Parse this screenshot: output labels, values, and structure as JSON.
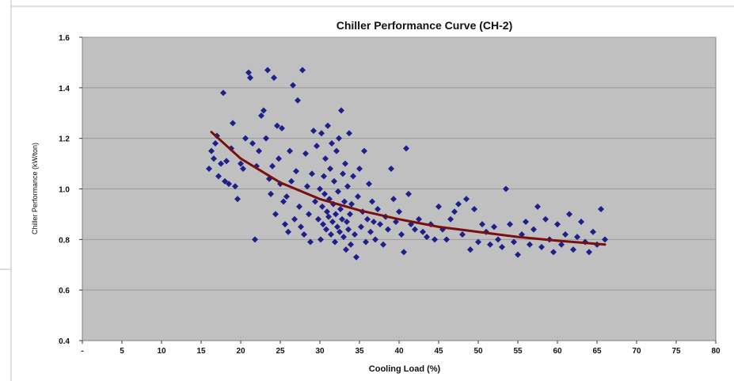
{
  "chart_data": {
    "type": "scatter",
    "title": "Chiller Performance Curve (CH-2)",
    "xlabel": "Cooling Load (%)",
    "ylabel": "Chiller Performance (kW/ton)",
    "xlim": [
      0,
      80
    ],
    "ylim": [
      0.4,
      1.6
    ],
    "x_ticks": [
      "-",
      "5",
      "10",
      "15",
      "20",
      "25",
      "30",
      "35",
      "40",
      "45",
      "50",
      "55",
      "60",
      "65",
      "70",
      "75",
      "80"
    ],
    "y_ticks": [
      "0.4",
      "0.6",
      "0.8",
      "1.0",
      "1.2",
      "1.4",
      "1.6"
    ],
    "grid": true,
    "legend": "none",
    "colors": {
      "plot_background": "#c0c0c0",
      "points": "#1f1f8a",
      "trendline": "#7a0f0f",
      "gridline": "#9a9a9a"
    },
    "series": [
      {
        "type": "scatter",
        "marker": "diamond",
        "points": [
          [
            16.0,
            1.08
          ],
          [
            16.3,
            1.15
          ],
          [
            16.6,
            1.12
          ],
          [
            16.8,
            1.18
          ],
          [
            17.0,
            1.21
          ],
          [
            17.2,
            1.05
          ],
          [
            17.5,
            1.1
          ],
          [
            17.8,
            1.38
          ],
          [
            18.0,
            1.03
          ],
          [
            18.2,
            1.11
          ],
          [
            18.5,
            1.02
          ],
          [
            18.8,
            1.16
          ],
          [
            19.0,
            1.26
          ],
          [
            19.3,
            1.01
          ],
          [
            19.6,
            0.96
          ],
          [
            20.0,
            1.1
          ],
          [
            20.3,
            1.08
          ],
          [
            20.6,
            1.2
          ],
          [
            21.0,
            1.46
          ],
          [
            21.2,
            1.44
          ],
          [
            21.5,
            1.18
          ],
          [
            21.8,
            0.8
          ],
          [
            22.0,
            1.09
          ],
          [
            22.3,
            1.15
          ],
          [
            22.6,
            1.29
          ],
          [
            22.9,
            1.31
          ],
          [
            23.2,
            1.2
          ],
          [
            23.4,
            1.47
          ],
          [
            23.6,
            1.04
          ],
          [
            23.8,
            0.98
          ],
          [
            24.0,
            1.09
          ],
          [
            24.2,
            1.44
          ],
          [
            24.4,
            0.9
          ],
          [
            24.6,
            1.25
          ],
          [
            24.8,
            1.12
          ],
          [
            25.0,
            1.02
          ],
          [
            25.2,
            1.24
          ],
          [
            25.4,
            0.95
          ],
          [
            25.6,
            0.86
          ],
          [
            25.8,
            0.97
          ],
          [
            26.0,
            0.83
          ],
          [
            26.2,
            1.15
          ],
          [
            26.4,
            1.03
          ],
          [
            26.6,
            1.41
          ],
          [
            26.8,
            0.88
          ],
          [
            27.0,
            1.07
          ],
          [
            27.2,
            1.35
          ],
          [
            27.4,
            0.93
          ],
          [
            27.6,
            0.85
          ],
          [
            27.8,
            1.47
          ],
          [
            28.0,
            0.82
          ],
          [
            28.2,
            1.14
          ],
          [
            28.4,
            1.01
          ],
          [
            28.6,
            0.9
          ],
          [
            28.8,
            0.79
          ],
          [
            29.0,
            1.06
          ],
          [
            29.2,
            1.23
          ],
          [
            29.4,
            0.95
          ],
          [
            29.6,
            1.17
          ],
          [
            29.8,
            0.88
          ],
          [
            30.0,
            1.0
          ],
          [
            30.1,
            0.8
          ],
          [
            30.2,
            1.22
          ],
          [
            30.3,
            0.93
          ],
          [
            30.4,
            0.86
          ],
          [
            30.5,
            1.05
          ],
          [
            30.6,
            0.98
          ],
          [
            30.7,
            1.12
          ],
          [
            30.8,
            0.84
          ],
          [
            30.9,
            0.91
          ],
          [
            31.0,
            1.25
          ],
          [
            31.1,
            0.89
          ],
          [
            31.2,
            0.96
          ],
          [
            31.3,
            1.08
          ],
          [
            31.4,
            0.82
          ],
          [
            31.5,
            1.18
          ],
          [
            31.6,
            0.87
          ],
          [
            31.7,
            0.94
          ],
          [
            31.8,
            1.03
          ],
          [
            31.9,
            0.79
          ],
          [
            32.0,
            0.9
          ],
          [
            32.1,
            1.15
          ],
          [
            32.2,
            0.85
          ],
          [
            32.3,
            0.99
          ],
          [
            32.4,
            1.2
          ],
          [
            32.5,
            0.83
          ],
          [
            32.6,
            0.92
          ],
          [
            32.7,
            1.31
          ],
          [
            32.8,
            0.88
          ],
          [
            32.9,
            1.06
          ],
          [
            33.0,
            0.81
          ],
          [
            33.1,
            0.95
          ],
          [
            33.2,
            1.1
          ],
          [
            33.3,
            0.76
          ],
          [
            33.4,
            0.87
          ],
          [
            33.5,
            1.01
          ],
          [
            33.6,
            0.84
          ],
          [
            33.7,
            1.22
          ],
          [
            33.8,
            0.9
          ],
          [
            33.9,
            0.78
          ],
          [
            34.0,
            0.94
          ],
          [
            34.2,
            1.05
          ],
          [
            34.4,
            0.82
          ],
          [
            34.6,
            0.73
          ],
          [
            34.8,
            0.97
          ],
          [
            35.0,
            1.08
          ],
          [
            35.2,
            0.85
          ],
          [
            35.4,
            0.91
          ],
          [
            35.6,
            1.15
          ],
          [
            35.8,
            0.79
          ],
          [
            36.0,
            0.88
          ],
          [
            36.2,
            1.02
          ],
          [
            36.4,
            0.83
          ],
          [
            36.6,
            0.95
          ],
          [
            36.8,
            0.87
          ],
          [
            37.0,
            0.8
          ],
          [
            37.3,
            0.92
          ],
          [
            37.6,
            0.86
          ],
          [
            38.0,
            0.78
          ],
          [
            38.3,
            0.89
          ],
          [
            38.6,
            0.84
          ],
          [
            39.0,
            1.08
          ],
          [
            39.3,
            0.96
          ],
          [
            39.6,
            0.87
          ],
          [
            40.0,
            0.91
          ],
          [
            40.3,
            0.82
          ],
          [
            40.6,
            0.75
          ],
          [
            40.9,
            1.16
          ],
          [
            41.2,
            0.98
          ],
          [
            41.5,
            0.86
          ],
          [
            42.0,
            0.84
          ],
          [
            42.5,
            0.88
          ],
          [
            43.0,
            0.83
          ],
          [
            43.5,
            0.81
          ],
          [
            44.0,
            0.86
          ],
          [
            44.5,
            0.8
          ],
          [
            45.0,
            0.93
          ],
          [
            45.5,
            0.84
          ],
          [
            46.0,
            0.8
          ],
          [
            46.5,
            0.88
          ],
          [
            47.0,
            0.91
          ],
          [
            47.5,
            0.94
          ],
          [
            48.0,
            0.82
          ],
          [
            48.5,
            0.96
          ],
          [
            49.0,
            0.76
          ],
          [
            49.5,
            0.92
          ],
          [
            50.0,
            0.79
          ],
          [
            50.5,
            0.86
          ],
          [
            51.0,
            0.83
          ],
          [
            51.5,
            0.78
          ],
          [
            52.0,
            0.85
          ],
          [
            52.5,
            0.8
          ],
          [
            53.0,
            0.77
          ],
          [
            53.5,
            1.0
          ],
          [
            54.0,
            0.86
          ],
          [
            54.5,
            0.79
          ],
          [
            55.0,
            0.74
          ],
          [
            55.5,
            0.82
          ],
          [
            56.0,
            0.87
          ],
          [
            56.5,
            0.78
          ],
          [
            57.0,
            0.84
          ],
          [
            57.5,
            0.93
          ],
          [
            58.0,
            0.77
          ],
          [
            58.5,
            0.88
          ],
          [
            59.0,
            0.8
          ],
          [
            59.5,
            0.75
          ],
          [
            60.0,
            0.86
          ],
          [
            60.5,
            0.78
          ],
          [
            61.0,
            0.82
          ],
          [
            61.5,
            0.9
          ],
          [
            62.0,
            0.76
          ],
          [
            62.5,
            0.81
          ],
          [
            63.0,
            0.87
          ],
          [
            63.5,
            0.79
          ],
          [
            64.0,
            0.75
          ],
          [
            64.5,
            0.83
          ],
          [
            65.0,
            0.78
          ],
          [
            65.5,
            0.92
          ],
          [
            66.0,
            0.8
          ]
        ]
      },
      {
        "type": "line",
        "trendline": true,
        "points": [
          [
            16.3,
            1.225
          ],
          [
            20,
            1.12
          ],
          [
            25,
            1.025
          ],
          [
            30,
            0.96
          ],
          [
            35,
            0.915
          ],
          [
            40,
            0.88
          ],
          [
            45,
            0.85
          ],
          [
            50,
            0.83
          ],
          [
            55,
            0.81
          ],
          [
            60,
            0.795
          ],
          [
            66,
            0.78
          ]
        ]
      }
    ]
  }
}
